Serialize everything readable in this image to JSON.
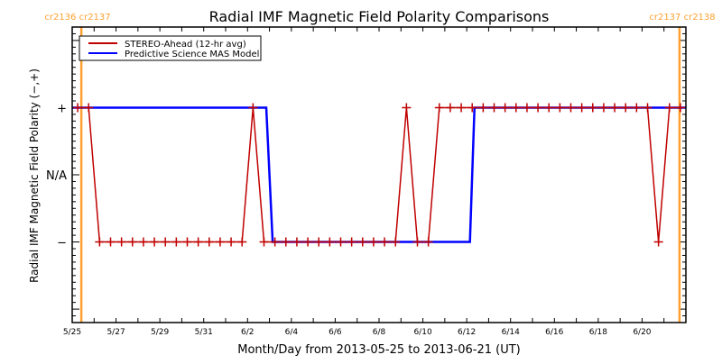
{
  "chart_data": {
    "type": "line",
    "title": "Radial IMF Magnetic Field Polarity Comparisons",
    "xlabel": "Month/Day from 2013-05-25 to 2013-06-21 (UT)",
    "ylabel": "Radial IMF Magnetic Field Polarity (−,+)",
    "xlim": [
      "2013-05-25T00:00",
      "2013-06-22T00:00"
    ],
    "ylim": [
      -2.2,
      2.2
    ],
    "x_tick_labels": [
      "5/25",
      "5/27",
      "5/29",
      "5/31",
      "6/2",
      "6/4",
      "6/6",
      "6/8",
      "6/10",
      "6/12",
      "6/14",
      "6/16",
      "6/18",
      "6/20"
    ],
    "y_ticks": [
      {
        "value": 1,
        "label": "+"
      },
      {
        "value": 0,
        "label": "N/A"
      },
      {
        "value": -1,
        "label": "−"
      }
    ],
    "grid": false,
    "legend_position": "top-left",
    "series": [
      {
        "name": "STEREO-Ahead (12-hr avg)",
        "color": "#c00000",
        "marker": "plus",
        "x": [
          "2013-05-25T06:00",
          "2013-05-25T18:00",
          "2013-05-26T06:00",
          "2013-05-26T18:00",
          "2013-05-27T06:00",
          "2013-05-27T18:00",
          "2013-05-28T06:00",
          "2013-05-28T18:00",
          "2013-05-29T06:00",
          "2013-05-29T18:00",
          "2013-05-30T06:00",
          "2013-05-30T18:00",
          "2013-05-31T06:00",
          "2013-05-31T18:00",
          "2013-06-01T06:00",
          "2013-06-01T18:00",
          "2013-06-02T06:00",
          "2013-06-02T18:00",
          "2013-06-03T06:00",
          "2013-06-03T18:00",
          "2013-06-04T06:00",
          "2013-06-04T18:00",
          "2013-06-05T06:00",
          "2013-06-05T18:00",
          "2013-06-06T06:00",
          "2013-06-06T18:00",
          "2013-06-07T06:00",
          "2013-06-07T18:00",
          "2013-06-08T06:00",
          "2013-06-08T18:00",
          "2013-06-09T06:00",
          "2013-06-09T18:00",
          "2013-06-10T06:00",
          "2013-06-10T18:00",
          "2013-06-11T06:00",
          "2013-06-11T18:00",
          "2013-06-12T06:00",
          "2013-06-12T18:00",
          "2013-06-13T06:00",
          "2013-06-13T18:00",
          "2013-06-14T06:00",
          "2013-06-14T18:00",
          "2013-06-15T06:00",
          "2013-06-15T18:00",
          "2013-06-16T06:00",
          "2013-06-16T18:00",
          "2013-06-17T06:00",
          "2013-06-17T18:00",
          "2013-06-18T06:00",
          "2013-06-18T18:00",
          "2013-06-19T06:00",
          "2013-06-19T18:00",
          "2013-06-20T06:00",
          "2013-06-20T18:00",
          "2013-06-21T06:00",
          "2013-06-21T18:00"
        ],
        "values": [
          1,
          1,
          -1,
          -1,
          -1,
          -1,
          -1,
          -1,
          -1,
          -1,
          -1,
          -1,
          -1,
          -1,
          -1,
          -1,
          1,
          -1,
          -1,
          -1,
          -1,
          -1,
          -1,
          -1,
          -1,
          -1,
          -1,
          -1,
          -1,
          -1,
          1,
          -1,
          -1,
          1,
          1,
          1,
          1,
          1,
          1,
          1,
          1,
          1,
          1,
          1,
          1,
          1,
          1,
          1,
          1,
          1,
          1,
          1,
          1,
          -1,
          1,
          1
        ]
      },
      {
        "name": "Predictive Science MAS Model",
        "color": "#0000ff",
        "x": [
          "2013-05-25T00:00",
          "2013-06-02T20:30",
          "2013-06-03T03:30",
          "2013-06-12T03:30",
          "2013-06-12T08:30",
          "2013-06-22T00:00"
        ],
        "values": [
          1,
          1,
          -1,
          -1,
          1,
          1
        ]
      }
    ],
    "annotations": [
      {
        "type": "vline",
        "x": "2013-05-25T10:00",
        "color": "#ffa030",
        "label": "cr2136 cr2137"
      },
      {
        "type": "vline",
        "x": "2013-06-21T17:00",
        "color": "#ffa030",
        "label": "cr2137 cr2138"
      }
    ]
  }
}
